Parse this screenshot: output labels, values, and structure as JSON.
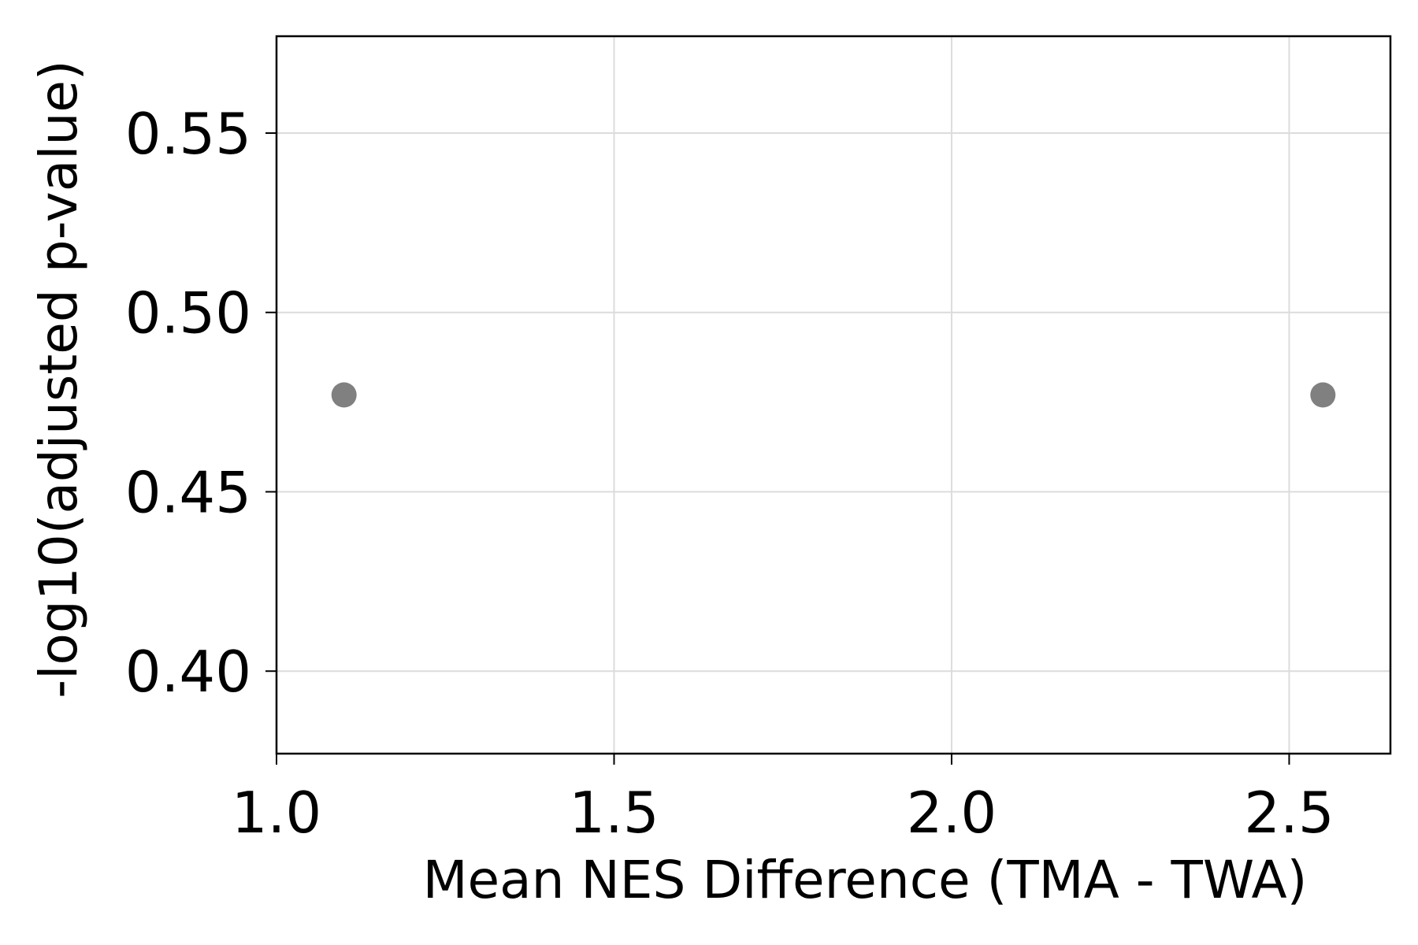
{
  "chart_data": {
    "type": "scatter",
    "title": "",
    "xlabel": "Mean NES Difference (TMA - TWA)",
    "ylabel": "-log10(adjusted p-value)",
    "xlim": [
      1.0,
      2.65
    ],
    "ylim": [
      0.377,
      0.577
    ],
    "xticks": [
      1.0,
      1.5,
      2.0,
      2.5
    ],
    "xtick_labels": [
      "1.0",
      "1.5",
      "2.0",
      "2.5"
    ],
    "yticks": [
      0.4,
      0.45,
      0.5,
      0.55
    ],
    "ytick_labels": [
      "0.40",
      "0.45",
      "0.50",
      "0.55"
    ],
    "grid": true,
    "legend": "none",
    "series": [
      {
        "color": "#808080",
        "points": [
          {
            "x": 1.1,
            "y": 0.477
          },
          {
            "x": 2.55,
            "y": 0.477
          }
        ]
      }
    ]
  }
}
